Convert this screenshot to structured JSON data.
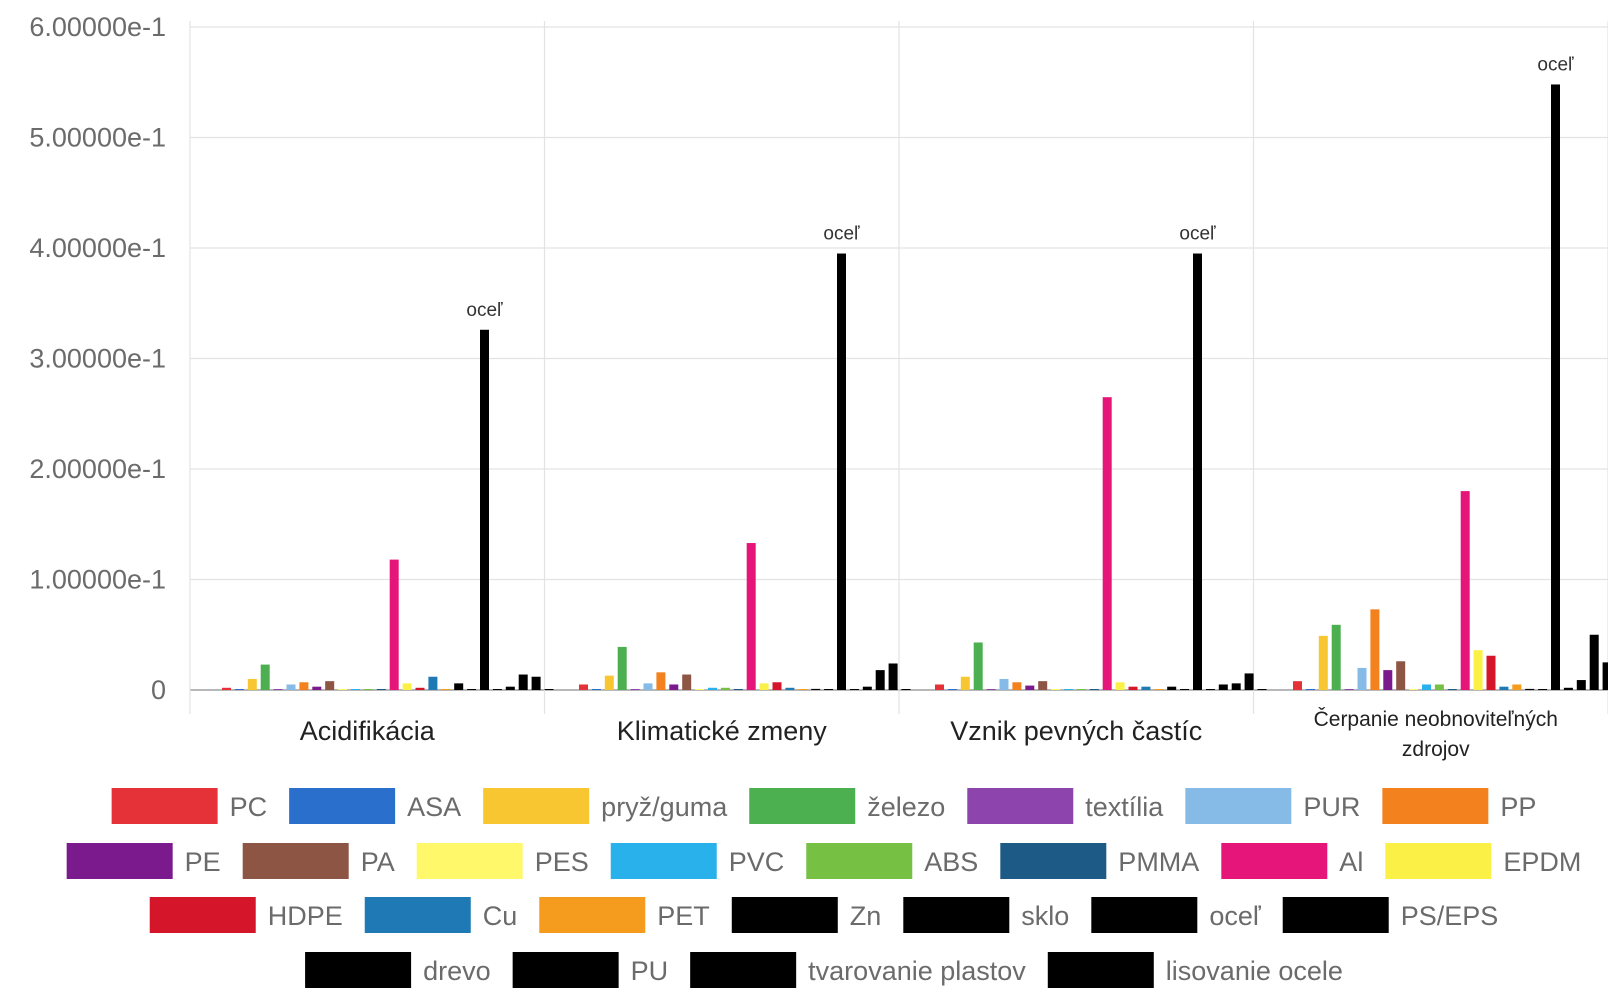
{
  "chart_data": {
    "type": "bar",
    "ylim": [
      0,
      0.6
    ],
    "yticks": [
      {
        "value": 0.6,
        "label": "6.00000e-1"
      },
      {
        "value": 0.5,
        "label": "5.00000e-1"
      },
      {
        "value": 0.4,
        "label": "4.00000e-1"
      },
      {
        "value": 0.3,
        "label": "3.00000e-1"
      },
      {
        "value": 0.2,
        "label": "2.00000e-1"
      },
      {
        "value": 0.1,
        "label": "1.00000e-1"
      },
      {
        "value": 0,
        "label": "0"
      }
    ],
    "grid": true,
    "legend_position": "bottom",
    "categories": [
      {
        "label": "Acidifikácia"
      },
      {
        "label": "Klimatické zmeny"
      },
      {
        "label": "Vznik pevných častíc"
      },
      {
        "label": "Čerpanie neobnoviteľných",
        "label2": "zdrojov"
      }
    ],
    "annotation_text": "oceľ",
    "annotation_series": "oceľ",
    "series": [
      {
        "name": "PC",
        "color": "#e53238",
        "values": [
          0.002,
          0.005,
          0.005,
          0.008
        ]
      },
      {
        "name": "ASA",
        "color": "#2a6fcc",
        "values": [
          0.0005,
          0.0005,
          0.0005,
          0.0005
        ]
      },
      {
        "name": "pryž/guma",
        "color": "#f8c630",
        "values": [
          0.01,
          0.013,
          0.012,
          0.049
        ]
      },
      {
        "name": "železo",
        "color": "#4caf50",
        "values": [
          0.023,
          0.039,
          0.043,
          0.059
        ]
      },
      {
        "name": "textília",
        "color": "#8e44ad",
        "values": [
          0.0005,
          0.0005,
          0.0005,
          0.0005
        ]
      },
      {
        "name": "PUR",
        "color": "#86bbe8",
        "values": [
          0.005,
          0.006,
          0.01,
          0.02
        ]
      },
      {
        "name": "PP",
        "color": "#f3821e",
        "values": [
          0.007,
          0.016,
          0.007,
          0.073
        ]
      },
      {
        "name": "PE",
        "color": "#7b1a8c",
        "values": [
          0.003,
          0.005,
          0.004,
          0.018
        ]
      },
      {
        "name": "PA",
        "color": "#8d5544",
        "values": [
          0.008,
          0.014,
          0.008,
          0.026
        ]
      },
      {
        "name": "PES",
        "color": "#fff86a",
        "values": [
          0.0005,
          0.0005,
          0.0005,
          0.0005
        ]
      },
      {
        "name": "PVC",
        "color": "#29b1ec",
        "values": [
          0.0005,
          0.002,
          0.0005,
          0.005
        ]
      },
      {
        "name": "ABS",
        "color": "#76c043",
        "values": [
          0.0005,
          0.002,
          0.0005,
          0.005
        ]
      },
      {
        "name": "PMMA",
        "color": "#1d5b86",
        "values": [
          0.0005,
          0.0005,
          0.0005,
          0.0005
        ]
      },
      {
        "name": "Al",
        "color": "#e5157a",
        "values": [
          0.118,
          0.133,
          0.265,
          0.18
        ]
      },
      {
        "name": "EPDM",
        "color": "#fbf046",
        "values": [
          0.006,
          0.006,
          0.007,
          0.036
        ]
      },
      {
        "name": "HDPE",
        "color": "#d5152a",
        "values": [
          0.002,
          0.007,
          0.003,
          0.031
        ]
      },
      {
        "name": "Cu",
        "color": "#1f79b4",
        "values": [
          0.012,
          0.002,
          0.003,
          0.003
        ]
      },
      {
        "name": "PET",
        "color": "#f59b1d",
        "values": [
          0.0005,
          0.0005,
          0.0005,
          0.005
        ]
      },
      {
        "name": "Zn",
        "color": "#000000",
        "values": [
          0.006,
          0.001,
          0.003,
          0.001
        ]
      },
      {
        "name": "sklo",
        "color": "#000000",
        "values": [
          0.0005,
          0.0005,
          0.0005,
          0.0005
        ]
      },
      {
        "name": "oceľ",
        "color": "#000000",
        "values": [
          0.326,
          0.395,
          0.395,
          0.548
        ]
      },
      {
        "name": "PS/EPS",
        "color": "#000000",
        "values": [
          0.0005,
          0.0005,
          0.0005,
          0.002
        ]
      },
      {
        "name": "drevo",
        "color": "#000000",
        "values": [
          0.003,
          0.003,
          0.005,
          0.009
        ]
      },
      {
        "name": "PU",
        "color": "#000000",
        "values": [
          0.014,
          0.018,
          0.006,
          0.05
        ]
      },
      {
        "name": "tvarovanie plastov",
        "color": "#000000",
        "values": [
          0.012,
          0.024,
          0.015,
          0.025
        ]
      },
      {
        "name": "lisovanie ocele",
        "color": "#000000",
        "values": [
          0.0005,
          0.0005,
          0.0005,
          0.0005
        ]
      }
    ]
  },
  "legend_rows": [
    [
      "PC",
      "ASA",
      "pryž/guma",
      "železo",
      "textília",
      "PUR",
      "PP"
    ],
    [
      "PE",
      "PA",
      "PES",
      "PVC",
      "ABS",
      "PMMA",
      "Al",
      "EPDM"
    ],
    [
      "HDPE",
      "Cu",
      "PET",
      "Zn",
      "sklo",
      "oceľ",
      "PS/EPS"
    ],
    [
      "drevo",
      "PU",
      "tvarovanie plastov",
      "lisovanie ocele"
    ]
  ]
}
